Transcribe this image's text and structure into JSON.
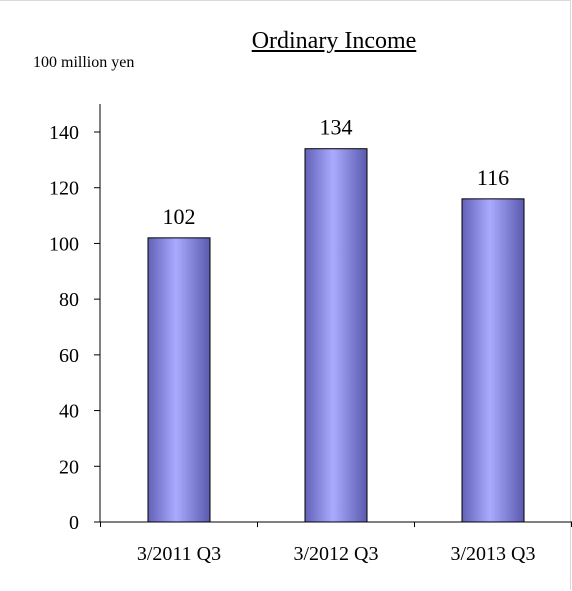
{
  "chart_data": {
    "type": "bar",
    "title": "Ordinary Income",
    "unit_label": "100 million yen",
    "categories": [
      "3/2011 Q3",
      "3/2012 Q3",
      "3/2013 Q3"
    ],
    "values": [
      102,
      134,
      116
    ],
    "data_labels": [
      "102",
      "134",
      "116"
    ],
    "ylim": [
      0,
      140
    ],
    "yticks": [
      0,
      20,
      40,
      60,
      80,
      100,
      120,
      140
    ],
    "grid": false,
    "legend": "none",
    "bar_color": "#9b9bf2"
  }
}
